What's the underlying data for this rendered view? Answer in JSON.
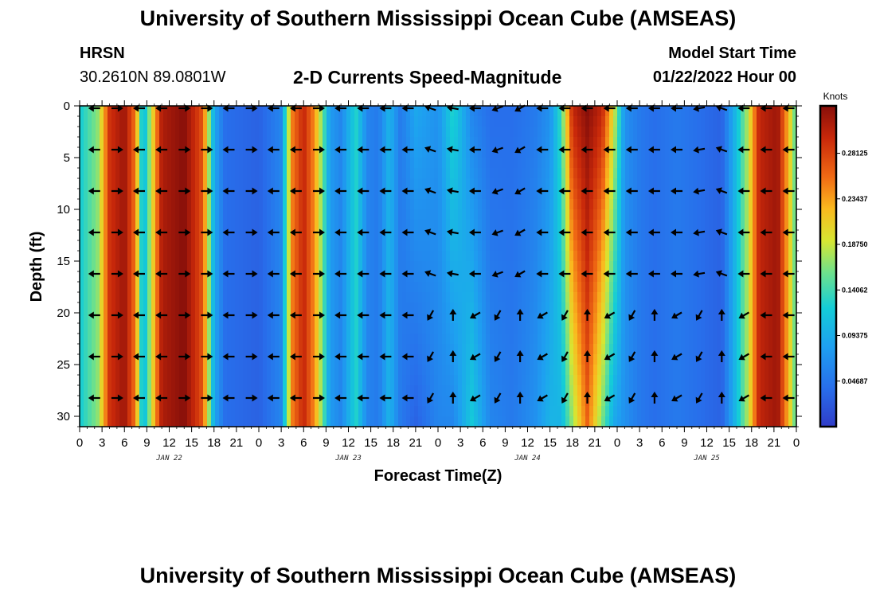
{
  "header": {
    "title": "University of Southern Mississippi Ocean Cube (AMSEAS)",
    "station": "HRSN",
    "coordinates": "30.2610N  89.0801W",
    "subtitle": "2-D Currents Speed-Magnitude",
    "model_start_label": "Model Start Time",
    "model_start_value": "01/22/2022 Hour 00"
  },
  "footer": {
    "title": "University of Southern Mississippi Ocean Cube (AMSEAS)"
  },
  "chart_data": {
    "type": "heatmap",
    "title": "2-D Currents Speed-Magnitude",
    "xlabel": "Forecast Time(Z)",
    "ylabel": "Depth (ft)",
    "x_tick_labels": [
      "0",
      "3",
      "6",
      "9",
      "12",
      "15",
      "18",
      "21",
      "0",
      "3",
      "6",
      "9",
      "12",
      "15",
      "18",
      "21",
      "0",
      "3",
      "6",
      "9",
      "12",
      "15",
      "18",
      "21",
      "0",
      "3",
      "6",
      "9",
      "12",
      "15",
      "18",
      "21",
      "0"
    ],
    "x_day_labels": [
      {
        "label": "JAN 22",
        "hour": 12
      },
      {
        "label": "JAN 23",
        "hour": 36
      },
      {
        "label": "JAN 24",
        "hour": 60
      },
      {
        "label": "JAN 25",
        "hour": 84
      }
    ],
    "x_range_hours": [
      0,
      96
    ],
    "y_ticks": [
      0,
      5,
      10,
      15,
      20,
      25,
      30
    ],
    "y_range_ft": [
      0,
      31
    ],
    "colorbar": {
      "label": "Knots",
      "ticks": [
        "0.28125",
        "0.23437",
        "0.18750",
        "0.14062",
        "0.09375",
        "0.04687"
      ],
      "tick_values": [
        0.28125,
        0.234375,
        0.1875,
        0.140625,
        0.09375,
        0.046875
      ],
      "range": [
        0,
        0.33
      ]
    },
    "arrow_depths_ft": [
      0,
      4,
      8,
      12,
      16,
      20,
      24,
      28
    ],
    "arrow_hours": [
      2,
      5,
      8,
      11,
      14,
      17,
      20,
      23,
      26,
      29,
      32,
      35,
      38,
      41,
      44,
      47,
      50,
      53,
      56,
      59,
      62,
      65,
      68,
      71,
      74,
      77,
      80,
      83,
      86,
      89,
      92,
      95
    ],
    "speed_profile": [
      {
        "hour": 0,
        "surface": 0.12,
        "bottom": 0.12
      },
      {
        "hour": 2.5,
        "surface": 0.17,
        "bottom": 0.17
      },
      {
        "hour": 4,
        "surface": 0.29,
        "bottom": 0.29
      },
      {
        "hour": 6,
        "surface": 0.32,
        "bottom": 0.32
      },
      {
        "hour": 7.5,
        "surface": 0.25,
        "bottom": 0.25
      },
      {
        "hour": 8.5,
        "surface": 0.09,
        "bottom": 0.09
      },
      {
        "hour": 9.5,
        "surface": 0.18,
        "bottom": 0.18
      },
      {
        "hour": 11,
        "surface": 0.31,
        "bottom": 0.31
      },
      {
        "hour": 14,
        "surface": 0.33,
        "bottom": 0.33
      },
      {
        "hour": 16.5,
        "surface": 0.27,
        "bottom": 0.27
      },
      {
        "hour": 18,
        "surface": 0.09,
        "bottom": 0.09
      },
      {
        "hour": 19.5,
        "surface": 0.04,
        "bottom": 0.04
      },
      {
        "hour": 24,
        "surface": 0.03,
        "bottom": 0.03
      },
      {
        "hour": 27,
        "surface": 0.06,
        "bottom": 0.06
      },
      {
        "hour": 28.5,
        "surface": 0.25,
        "bottom": 0.25
      },
      {
        "hour": 30,
        "surface": 0.3,
        "bottom": 0.3
      },
      {
        "hour": 31.5,
        "surface": 0.24,
        "bottom": 0.24
      },
      {
        "hour": 33.5,
        "surface": 0.08,
        "bottom": 0.08
      },
      {
        "hour": 35,
        "surface": 0.06,
        "bottom": 0.06
      },
      {
        "hour": 37,
        "surface": 0.13,
        "bottom": 0.13
      },
      {
        "hour": 38.5,
        "surface": 0.06,
        "bottom": 0.06
      },
      {
        "hour": 40,
        "surface": 0.05,
        "bottom": 0.05
      },
      {
        "hour": 41.5,
        "surface": 0.1,
        "bottom": 0.1
      },
      {
        "hour": 43,
        "surface": 0.05,
        "bottom": 0.05
      },
      {
        "hour": 45,
        "surface": 0.09,
        "bottom": 0.03
      },
      {
        "hour": 48,
        "surface": 0.07,
        "bottom": 0.06
      },
      {
        "hour": 50,
        "surface": 0.13,
        "bottom": 0.06
      },
      {
        "hour": 52.5,
        "surface": 0.06,
        "bottom": 0.12
      },
      {
        "hour": 55,
        "surface": 0.04,
        "bottom": 0.06
      },
      {
        "hour": 58,
        "surface": 0.04,
        "bottom": 0.05
      },
      {
        "hour": 61,
        "surface": 0.05,
        "bottom": 0.07
      },
      {
        "hour": 63,
        "surface": 0.07,
        "bottom": 0.1
      },
      {
        "hour": 64.5,
        "surface": 0.14,
        "bottom": 0.1
      },
      {
        "hour": 66,
        "surface": 0.3,
        "bottom": 0.17
      },
      {
        "hour": 68,
        "surface": 0.33,
        "bottom": 0.26
      },
      {
        "hour": 70,
        "surface": 0.3,
        "bottom": 0.16
      },
      {
        "hour": 71.5,
        "surface": 0.2,
        "bottom": 0.09
      },
      {
        "hour": 73,
        "surface": 0.07,
        "bottom": 0.07
      },
      {
        "hour": 75,
        "surface": 0.05,
        "bottom": 0.05
      },
      {
        "hour": 77,
        "surface": 0.04,
        "bottom": 0.04
      },
      {
        "hour": 80,
        "surface": 0.05,
        "bottom": 0.05
      },
      {
        "hour": 83,
        "surface": 0.04,
        "bottom": 0.04
      },
      {
        "hour": 86,
        "surface": 0.03,
        "bottom": 0.03
      },
      {
        "hour": 88,
        "surface": 0.11,
        "bottom": 0.11
      },
      {
        "hour": 89.5,
        "surface": 0.18,
        "bottom": 0.18
      },
      {
        "hour": 91,
        "surface": 0.3,
        "bottom": 0.3
      },
      {
        "hour": 93.5,
        "surface": 0.32,
        "bottom": 0.32
      },
      {
        "hour": 95,
        "surface": 0.22,
        "bottom": 0.22
      },
      {
        "hour": 96,
        "surface": 0.14,
        "bottom": 0.14
      }
    ]
  }
}
